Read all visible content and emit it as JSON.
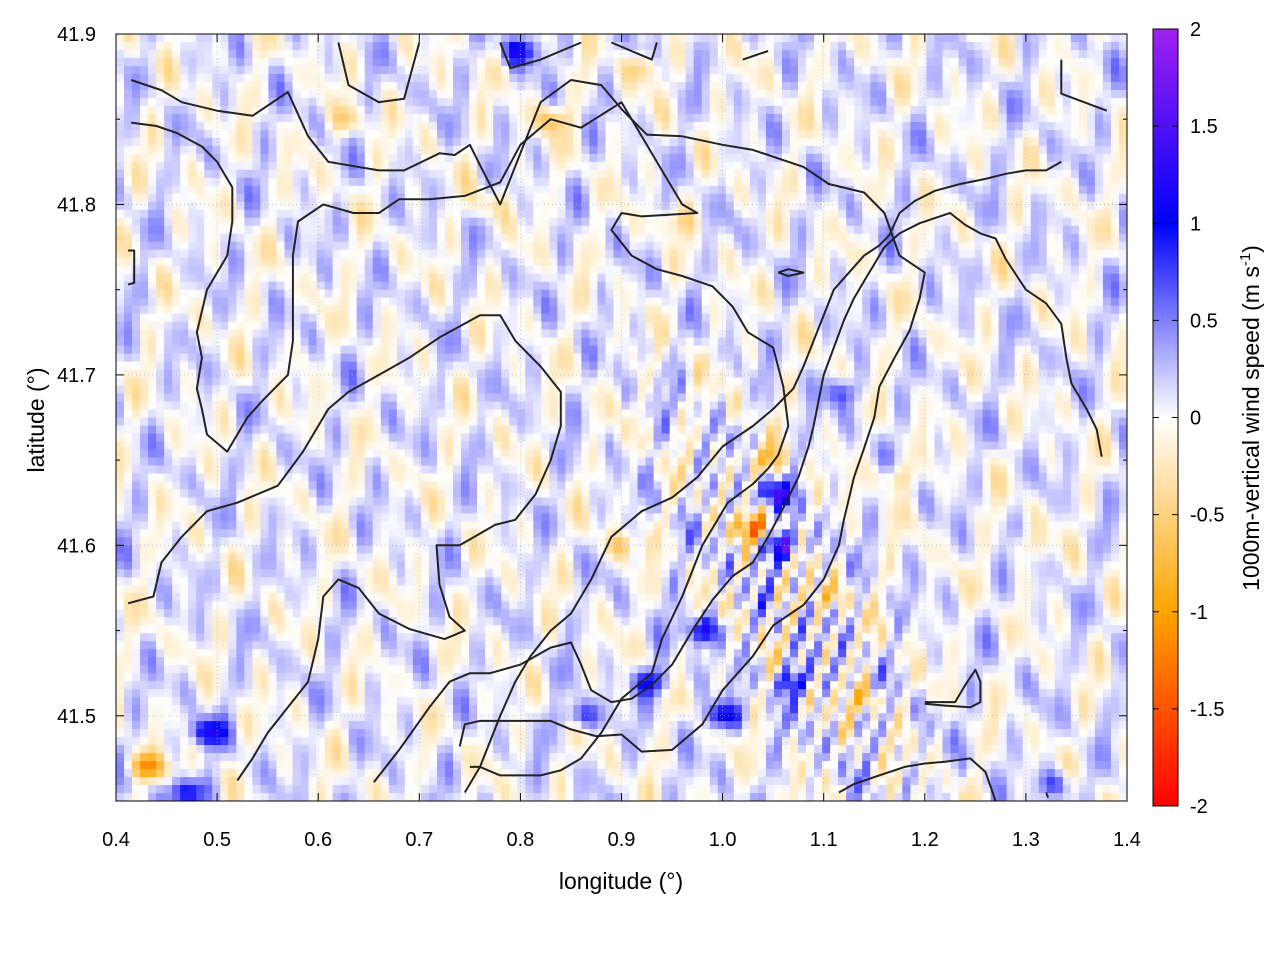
{
  "chart_data": {
    "type": "heatmap",
    "title": "",
    "xlabel": "longitude (°)",
    "ylabel": "latitude (°)",
    "colorbar_label_main": "1000m-vertical wind speed (m s",
    "colorbar_label_sup": "-1",
    "colorbar_label_close": ")",
    "xlim": [
      0.4,
      1.4
    ],
    "ylim": [
      41.45,
      41.9
    ],
    "x_ticks": [
      "0.4",
      "0.5",
      "0.6",
      "0.7",
      "0.8",
      "0.9",
      "1.0",
      "1.1",
      "1.2",
      "1.3",
      "1.4"
    ],
    "x_tick_values": [
      0.4,
      0.5,
      0.6,
      0.7,
      0.8,
      0.9,
      1.0,
      1.1,
      1.2,
      1.3,
      1.4
    ],
    "y_ticks": [
      "41.5",
      "41.6",
      "41.7",
      "41.8",
      "41.9"
    ],
    "y_tick_values": [
      41.5,
      41.6,
      41.7,
      41.8,
      41.9
    ],
    "colorbar_range": [
      -2,
      2
    ],
    "colorbar_ticks": [
      "2",
      "1.5",
      "1",
      "0.5",
      "0",
      "-0.5",
      "-1",
      "-1.5",
      "-2"
    ],
    "colorbar_tick_values": [
      2,
      1.5,
      1,
      0.5,
      0,
      -0.5,
      -1,
      -1.5,
      -2
    ],
    "colormap": [
      {
        "v": -2,
        "color": "#ff0000"
      },
      {
        "v": -1,
        "color": "#ffa500"
      },
      {
        "v": 0,
        "color": "#ffffff"
      },
      {
        "v": 1,
        "color": "#0000ff"
      },
      {
        "v": 2,
        "color": "#a020f0"
      }
    ],
    "grid": true,
    "contour_color": "#222222",
    "hotspots": [
      {
        "lon": 1.04,
        "lat": 41.65,
        "w": -0.8
      },
      {
        "lon": 1.05,
        "lat": 41.63,
        "w": 1.1
      },
      {
        "lon": 1.03,
        "lat": 41.61,
        "w": -1.2
      },
      {
        "lon": 1.06,
        "lat": 41.6,
        "w": 1.2
      },
      {
        "lon": 0.98,
        "lat": 41.55,
        "w": 1.0
      },
      {
        "lon": 0.93,
        "lat": 41.52,
        "w": 0.9
      },
      {
        "lon": 0.9,
        "lat": 41.6,
        "w": -0.5
      },
      {
        "lon": 1.1,
        "lat": 41.57,
        "w": -0.6
      },
      {
        "lon": 1.14,
        "lat": 41.51,
        "w": -0.6
      },
      {
        "lon": 1.07,
        "lat": 41.52,
        "w": 0.9
      },
      {
        "lon": 1.0,
        "lat": 41.5,
        "w": 1.0
      },
      {
        "lon": 0.86,
        "lat": 41.5,
        "w": 0.8
      },
      {
        "lon": 0.43,
        "lat": 41.47,
        "w": -1.1
      },
      {
        "lon": 0.49,
        "lat": 41.49,
        "w": 1.0
      },
      {
        "lon": 0.47,
        "lat": 41.455,
        "w": 1.0
      },
      {
        "lon": 0.8,
        "lat": 41.89,
        "w": 0.9
      },
      {
        "lon": 0.83,
        "lat": 41.85,
        "w": -0.6
      },
      {
        "lon": 0.63,
        "lat": 41.85,
        "w": -0.5
      },
      {
        "lon": 0.92,
        "lat": 41.88,
        "w": -0.5
      },
      {
        "lon": 1.12,
        "lat": 41.69,
        "w": 0.6
      },
      {
        "lon": 1.17,
        "lat": 41.64,
        "w": -0.5
      },
      {
        "lon": 1.3,
        "lat": 41.6,
        "w": -0.3
      },
      {
        "lon": 1.33,
        "lat": 41.46,
        "w": 0.6
      },
      {
        "lon": 0.77,
        "lat": 41.8,
        "w": -0.3
      },
      {
        "lon": 0.95,
        "lat": 41.79,
        "w": -0.35
      }
    ],
    "contours": [
      [
        [
          0.415,
          41.873
        ],
        [
          0.445,
          41.867
        ],
        [
          0.465,
          41.86
        ],
        [
          0.5,
          41.855
        ],
        [
          0.535,
          41.852
        ],
        [
          0.57,
          41.866
        ],
        [
          0.59,
          41.84
        ],
        [
          0.61,
          41.825
        ],
        [
          0.66,
          41.82
        ],
        [
          0.685,
          41.82
        ],
        [
          0.72,
          41.83
        ],
        [
          0.735,
          41.829
        ],
        [
          0.75,
          41.835
        ],
        [
          0.76,
          41.823
        ],
        [
          0.78,
          41.8
        ],
        [
          0.82,
          41.86
        ],
        [
          0.85,
          41.873
        ],
        [
          0.88,
          41.87
        ],
        [
          0.9,
          41.856
        ],
        [
          0.925,
          41.841
        ],
        [
          0.96,
          41.84
        ],
        [
          1.0,
          41.835
        ],
        [
          1.03,
          41.832
        ],
        [
          1.08,
          41.822
        ],
        [
          1.105,
          41.812
        ],
        [
          1.14,
          41.807
        ],
        [
          1.16,
          41.795
        ],
        [
          1.175,
          41.77
        ],
        [
          1.2,
          41.76
        ],
        [
          1.195,
          41.745
        ],
        [
          1.185,
          41.726
        ],
        [
          1.17,
          41.71
        ],
        [
          1.155,
          41.693
        ],
        [
          1.15,
          41.675
        ],
        [
          1.14,
          41.657
        ],
        [
          1.13,
          41.64
        ],
        [
          1.12,
          41.615
        ],
        [
          1.115,
          41.6
        ],
        [
          1.1,
          41.58
        ],
        [
          1.08,
          41.565
        ],
        [
          1.05,
          41.553
        ],
        [
          1.03,
          41.535
        ],
        [
          1.0,
          41.515
        ],
        [
          0.98,
          41.495
        ],
        [
          0.95,
          41.48
        ],
        [
          0.92,
          41.479
        ],
        [
          0.9,
          41.489
        ],
        [
          0.875,
          41.488
        ],
        [
          0.85,
          41.492
        ],
        [
          0.83,
          41.497
        ],
        [
          0.8,
          41.497
        ],
        [
          0.76,
          41.497
        ],
        [
          0.745,
          41.495
        ],
        [
          0.74,
          41.482
        ]
      ],
      [
        [
          0.415,
          41.848
        ],
        [
          0.44,
          41.846
        ],
        [
          0.46,
          41.842
        ],
        [
          0.485,
          41.834
        ],
        [
          0.5,
          41.825
        ],
        [
          0.515,
          41.81
        ],
        [
          0.515,
          41.79
        ],
        [
          0.51,
          41.77
        ],
        [
          0.49,
          41.75
        ],
        [
          0.48,
          41.725
        ],
        [
          0.485,
          41.71
        ],
        [
          0.48,
          41.692
        ],
        [
          0.485,
          41.68
        ],
        [
          0.49,
          41.665
        ],
        [
          0.51,
          41.655
        ],
        [
          0.53,
          41.675
        ],
        [
          0.545,
          41.685
        ],
        [
          0.57,
          41.7
        ],
        [
          0.575,
          41.72
        ],
        [
          0.575,
          41.745
        ],
        [
          0.575,
          41.77
        ],
        [
          0.58,
          41.79
        ],
        [
          0.605,
          41.8
        ],
        [
          0.635,
          41.795
        ],
        [
          0.66,
          41.795
        ],
        [
          0.68,
          41.803
        ],
        [
          0.71,
          41.803
        ],
        [
          0.745,
          41.805
        ],
        [
          0.78,
          41.813
        ],
        [
          0.8,
          41.835
        ],
        [
          0.83,
          41.85
        ],
        [
          0.86,
          41.845
        ],
        [
          0.9,
          41.86
        ],
        [
          0.93,
          41.83
        ],
        [
          0.94,
          41.82
        ],
        [
          0.96,
          41.8
        ],
        [
          0.975,
          41.795
        ],
        [
          0.92,
          41.793
        ],
        [
          0.9,
          41.795
        ],
        [
          0.89,
          41.785
        ],
        [
          0.91,
          41.77
        ],
        [
          0.935,
          41.762
        ],
        [
          0.96,
          41.758
        ],
        [
          0.99,
          41.752
        ],
        [
          1.01,
          41.74
        ],
        [
          1.025,
          41.725
        ],
        [
          1.05,
          41.716
        ],
        [
          1.06,
          41.693
        ],
        [
          1.065,
          41.67
        ],
        [
          1.055,
          41.653
        ],
        [
          1.045,
          41.645
        ],
        [
          1.03,
          41.636
        ],
        [
          1.005,
          41.625
        ],
        [
          0.98,
          41.6
        ],
        [
          0.97,
          41.585
        ],
        [
          0.96,
          41.57
        ],
        [
          0.94,
          41.545
        ],
        [
          0.93,
          41.525
        ],
        [
          0.9,
          41.51
        ],
        [
          0.88,
          41.49
        ],
        [
          0.86,
          41.475
        ],
        [
          0.84,
          41.468
        ],
        [
          0.82,
          41.465
        ],
        [
          0.8,
          41.465
        ],
        [
          0.78,
          41.465
        ],
        [
          0.76,
          41.47
        ],
        [
          0.75,
          41.47
        ]
      ],
      [
        [
          0.412,
          41.566
        ],
        [
          0.437,
          41.57
        ],
        [
          0.445,
          41.59
        ],
        [
          0.465,
          41.605
        ],
        [
          0.49,
          41.62
        ],
        [
          0.52,
          41.625
        ],
        [
          0.56,
          41.635
        ],
        [
          0.585,
          41.655
        ],
        [
          0.61,
          41.68
        ],
        [
          0.63,
          41.69
        ],
        [
          0.66,
          41.7
        ],
        [
          0.69,
          41.71
        ],
        [
          0.72,
          41.722
        ],
        [
          0.76,
          41.735
        ],
        [
          0.78,
          41.735
        ],
        [
          0.795,
          41.72
        ],
        [
          0.82,
          41.705
        ],
        [
          0.84,
          41.69
        ],
        [
          0.84,
          41.67
        ],
        [
          0.83,
          41.65
        ],
        [
          0.815,
          41.63
        ],
        [
          0.795,
          41.615
        ],
        [
          0.775,
          41.612
        ],
        [
          0.74,
          41.6
        ],
        [
          0.717,
          41.6
        ],
        [
          0.72,
          41.577
        ],
        [
          0.73,
          41.558
        ],
        [
          0.745,
          41.55
        ],
        [
          0.725,
          41.545
        ],
        [
          0.69,
          41.551
        ],
        [
          0.66,
          41.56
        ],
        [
          0.64,
          41.575
        ],
        [
          0.62,
          41.58
        ],
        [
          0.605,
          41.57
        ],
        [
          0.6,
          41.545
        ],
        [
          0.59,
          41.52
        ],
        [
          0.57,
          41.505
        ],
        [
          0.55,
          41.49
        ],
        [
          0.535,
          41.475
        ],
        [
          0.52,
          41.462
        ]
      ],
      [
        [
          0.655,
          41.461
        ],
        [
          0.68,
          41.48
        ],
        [
          0.71,
          41.505
        ],
        [
          0.73,
          41.52
        ],
        [
          0.75,
          41.525
        ],
        [
          0.77,
          41.525
        ],
        [
          0.8,
          41.53
        ],
        [
          0.83,
          41.54
        ],
        [
          0.85,
          41.543
        ],
        [
          0.86,
          41.53
        ],
        [
          0.87,
          41.515
        ],
        [
          0.89,
          41.508
        ],
        [
          0.91,
          41.51
        ],
        [
          0.93,
          41.518
        ],
        [
          0.95,
          41.53
        ],
        [
          0.97,
          41.55
        ],
        [
          0.99,
          41.568
        ],
        [
          1.01,
          41.582
        ],
        [
          1.03,
          41.59
        ],
        [
          1.045,
          41.605
        ],
        [
          1.06,
          41.622
        ],
        [
          1.075,
          41.64
        ],
        [
          1.085,
          41.658
        ],
        [
          1.09,
          41.67
        ],
        [
          1.095,
          41.685
        ],
        [
          1.1,
          41.7
        ],
        [
          1.11,
          41.716
        ],
        [
          1.12,
          41.732
        ],
        [
          1.13,
          41.745
        ],
        [
          1.14,
          41.755
        ],
        [
          1.15,
          41.765
        ],
        [
          1.16,
          41.775
        ],
        [
          1.175,
          41.783
        ],
        [
          1.195,
          41.789
        ],
        [
          1.21,
          41.792
        ],
        [
          1.225,
          41.795
        ],
        [
          1.24,
          41.788
        ],
        [
          1.255,
          41.783
        ],
        [
          1.27,
          41.78
        ],
        [
          1.28,
          41.768
        ],
        [
          1.3,
          41.75
        ],
        [
          1.32,
          41.742
        ],
        [
          1.335,
          41.73
        ],
        [
          1.34,
          41.71
        ],
        [
          1.345,
          41.695
        ],
        [
          1.36,
          41.68
        ],
        [
          1.37,
          41.668
        ],
        [
          1.375,
          41.652
        ]
      ],
      [
        [
          0.745,
          41.455
        ],
        [
          0.76,
          41.47
        ],
        [
          0.78,
          41.5
        ],
        [
          0.795,
          41.52
        ],
        [
          0.81,
          41.535
        ],
        [
          0.83,
          41.55
        ],
        [
          0.85,
          41.56
        ],
        [
          0.87,
          41.58
        ],
        [
          0.89,
          41.605
        ],
        [
          0.92,
          41.62
        ],
        [
          0.95,
          41.628
        ],
        [
          0.975,
          41.64
        ],
        [
          1.0,
          41.658
        ],
        [
          1.03,
          41.67
        ],
        [
          1.05,
          41.68
        ],
        [
          1.07,
          41.692
        ],
        [
          1.08,
          41.705
        ],
        [
          1.09,
          41.72
        ],
        [
          1.1,
          41.735
        ],
        [
          1.11,
          41.75
        ],
        [
          1.125,
          41.76
        ],
        [
          1.14,
          41.77
        ],
        [
          1.155,
          41.776
        ],
        [
          1.165,
          41.782
        ],
        [
          1.175,
          41.795
        ],
        [
          1.19,
          41.802
        ],
        [
          1.21,
          41.808
        ],
        [
          1.235,
          41.812
        ],
        [
          1.26,
          41.815
        ],
        [
          1.28,
          41.818
        ],
        [
          1.3,
          41.82
        ],
        [
          1.32,
          41.82
        ],
        [
          1.335,
          41.825
        ]
      ],
      [
        [
          1.115,
          41.455
        ],
        [
          1.13,
          41.46
        ],
        [
          1.16,
          41.466
        ],
        [
          1.18,
          41.47
        ],
        [
          1.2,
          41.472
        ],
        [
          1.22,
          41.473
        ],
        [
          1.245,
          41.475
        ],
        [
          1.26,
          41.467
        ],
        [
          1.27,
          41.45
        ]
      ],
      [
        [
          1.2,
          41.507
        ],
        [
          1.22,
          41.506
        ],
        [
          1.245,
          41.505
        ],
        [
          1.255,
          41.508
        ],
        [
          1.255,
          41.52
        ],
        [
          1.25,
          41.527
        ],
        [
          1.24,
          41.518
        ],
        [
          1.23,
          41.508
        ],
        [
          1.2,
          41.508
        ]
      ],
      [
        [
          0.412,
          41.773
        ],
        [
          0.418,
          41.773
        ],
        [
          0.418,
          41.754
        ],
        [
          0.412,
          41.753
        ]
      ],
      [
        [
          1.055,
          41.76
        ],
        [
          1.065,
          41.762
        ],
        [
          1.08,
          41.76
        ],
        [
          1.065,
          41.758
        ],
        [
          1.055,
          41.76
        ]
      ],
      [
        [
          0.62,
          41.895
        ],
        [
          0.63,
          41.87
        ],
        [
          0.66,
          41.86
        ],
        [
          0.685,
          41.862
        ],
        [
          0.7,
          41.895
        ]
      ],
      [
        [
          0.78,
          41.895
        ],
        [
          0.79,
          41.88
        ],
        [
          0.82,
          41.885
        ],
        [
          0.86,
          41.895
        ]
      ],
      [
        [
          0.89,
          41.895
        ],
        [
          0.93,
          41.885
        ],
        [
          0.935,
          41.895
        ]
      ],
      [
        [
          1.02,
          41.885
        ],
        [
          1.045,
          41.89
        ]
      ],
      [
        [
          1.335,
          41.885
        ],
        [
          1.335,
          41.865
        ],
        [
          1.38,
          41.855
        ]
      ],
      [
        [
          1.32,
          41.455
        ],
        [
          1.322,
          41.452
        ]
      ]
    ]
  }
}
